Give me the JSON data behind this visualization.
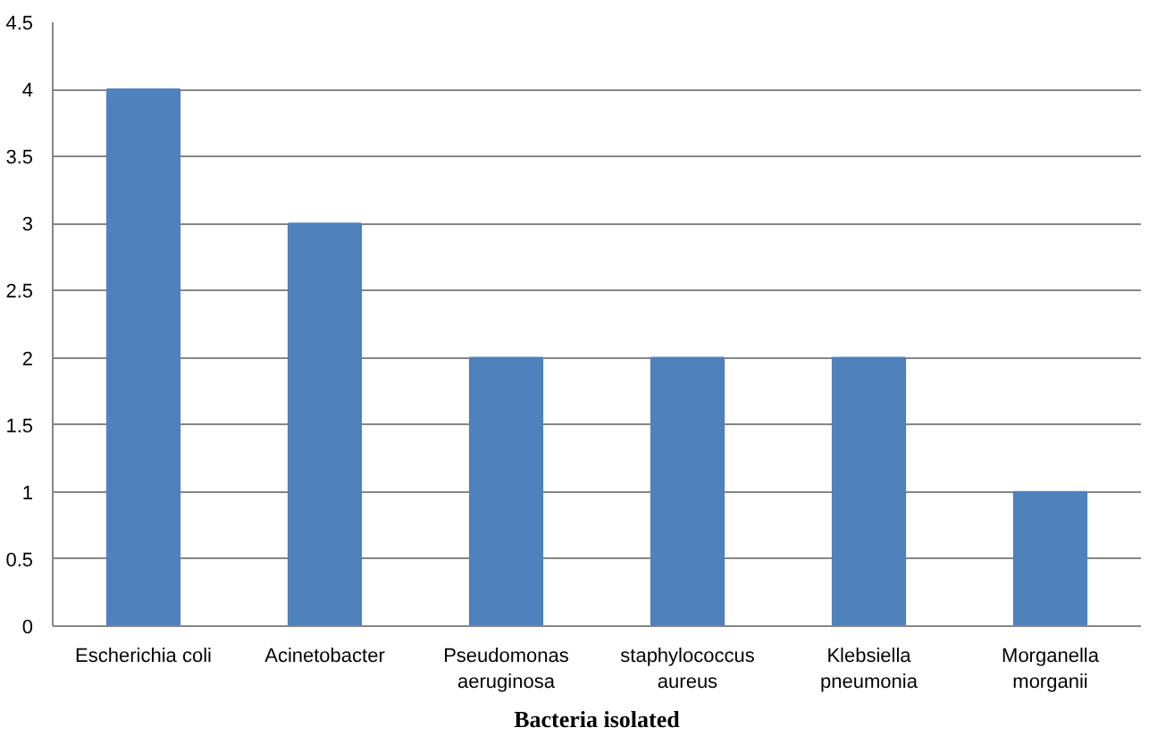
{
  "chart_data": {
    "type": "bar",
    "xlabel": "Bacteria isolated",
    "categories": [
      "Escherichia coli",
      "Acinetobacter",
      "Pseudomonas\naeruginosa",
      "staphylococcus\naureus",
      "Klebsiella\npneumonia",
      "Morganella\nmorganii"
    ],
    "values": [
      4,
      3,
      2,
      2,
      2,
      1
    ],
    "color": "#4f81bd",
    "ylim": [
      0,
      4.5
    ],
    "yticks": [
      0,
      0.5,
      1,
      1.5,
      2,
      2.5,
      3,
      3.5,
      4,
      4.5
    ],
    "grid": "y"
  }
}
